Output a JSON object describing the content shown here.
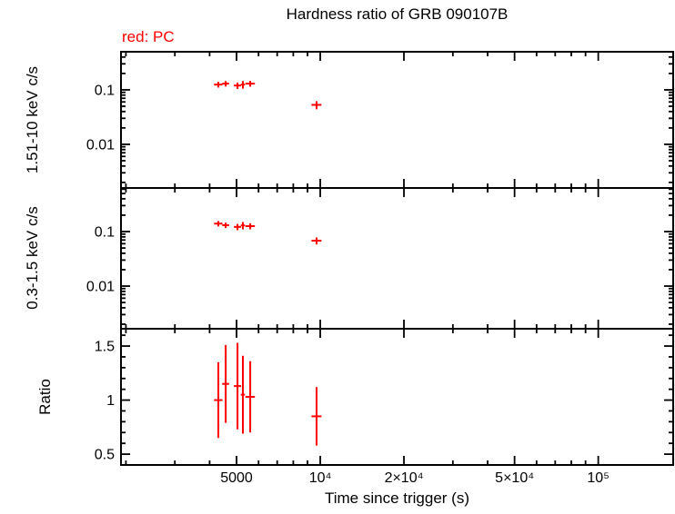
{
  "chart_data": {
    "type": "scatter",
    "title": "Hardness ratio of GRB 090107B",
    "legend": "red: PC",
    "legend_color": "#ff0000",
    "series_color": "#ff0000",
    "xlabel": "Time since trigger (s)",
    "xscale": "log",
    "xlim": [
      1920,
      186000
    ],
    "x_major_ticks": [
      {
        "value": 5000,
        "label": "5000"
      },
      {
        "value": 10000,
        "label": "10⁴"
      },
      {
        "value": 20000,
        "label": "2×10⁴"
      },
      {
        "value": 50000,
        "label": "5×10⁴"
      },
      {
        "value": 100000,
        "label": "10⁵"
      }
    ],
    "panels": [
      {
        "id": "hard-band",
        "ylabel": "1.51-10 keV c/s",
        "yscale": "log",
        "ylim": [
          0.00158,
          0.5
        ],
        "y_major_ticks": [
          {
            "value": 0.1,
            "label": "0.1"
          },
          {
            "value": 0.01,
            "label": "0.01"
          }
        ],
        "points": [
          {
            "x": 4300,
            "xerr": 150,
            "y": 0.125,
            "yerr": 0.015
          },
          {
            "x": 4570,
            "xerr": 130,
            "y": 0.13,
            "yerr": 0.015
          },
          {
            "x": 5040,
            "xerr": 150,
            "y": 0.12,
            "yerr": 0.016
          },
          {
            "x": 5270,
            "xerr": 90,
            "y": 0.125,
            "yerr": 0.02
          },
          {
            "x": 5600,
            "xerr": 220,
            "y": 0.13,
            "yerr": 0.016
          },
          {
            "x": 9700,
            "xerr": 400,
            "y": 0.053,
            "yerr": 0.009
          }
        ]
      },
      {
        "id": "soft-band",
        "ylabel": "0.3-1.5 keV c/s",
        "yscale": "log",
        "ylim": [
          0.00165,
          0.631
        ],
        "y_major_ticks": [
          {
            "value": 0.1,
            "label": "0.1"
          },
          {
            "value": 0.01,
            "label": "0.01"
          }
        ],
        "points": [
          {
            "x": 4300,
            "xerr": 150,
            "y": 0.14,
            "yerr": 0.016
          },
          {
            "x": 4570,
            "xerr": 130,
            "y": 0.131,
            "yerr": 0.015
          },
          {
            "x": 5040,
            "xerr": 150,
            "y": 0.122,
            "yerr": 0.016
          },
          {
            "x": 5270,
            "xerr": 90,
            "y": 0.13,
            "yerr": 0.02
          },
          {
            "x": 5600,
            "xerr": 220,
            "y": 0.126,
            "yerr": 0.016
          },
          {
            "x": 9700,
            "xerr": 400,
            "y": 0.068,
            "yerr": 0.01
          }
        ]
      },
      {
        "id": "ratio",
        "ylabel": "Ratio",
        "yscale": "linear",
        "ylim": [
          0.4,
          1.66
        ],
        "y_minor_step": 0.1,
        "y_major_ticks": [
          {
            "value": 0.5,
            "label": "0.5"
          },
          {
            "value": 1,
            "label": "1"
          },
          {
            "value": 1.5,
            "label": "1.5"
          }
        ],
        "points": [
          {
            "x": 4300,
            "xerr": 150,
            "y": 1.0,
            "yerr": 0.35
          },
          {
            "x": 4570,
            "xerr": 130,
            "y": 1.15,
            "yerr": 0.36
          },
          {
            "x": 5040,
            "xerr": 150,
            "y": 1.13,
            "yerr": 0.4
          },
          {
            "x": 5270,
            "xerr": 90,
            "y": 1.05,
            "yerr": 0.36
          },
          {
            "x": 5600,
            "xerr": 220,
            "y": 1.03,
            "yerr": 0.33
          },
          {
            "x": 9700,
            "xerr": 400,
            "y": 0.85,
            "yerr": 0.27
          }
        ]
      }
    ]
  }
}
